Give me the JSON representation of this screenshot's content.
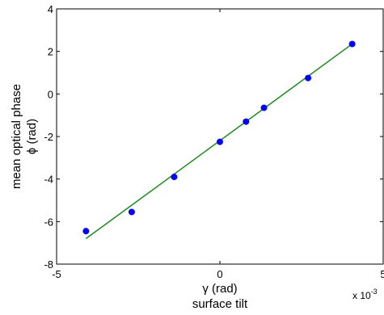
{
  "chart_data": {
    "type": "scatter",
    "title": "",
    "xlabel_line1": "γ (rad)",
    "xlabel_line2": "surface tilt",
    "ylabel_line1": "mean optical phase",
    "ylabel_line2": "ϕ (rad)",
    "x_exponent_label": "x 10",
    "x_exponent_power": "-3",
    "xlim": [
      -5,
      5
    ],
    "ylim": [
      -8,
      4
    ],
    "x_ticks": [
      -5,
      0,
      5
    ],
    "y_ticks": [
      -8,
      -6,
      -4,
      -2,
      0,
      2,
      4
    ],
    "grid": false,
    "legend": "none",
    "series": [
      {
        "kind": "points",
        "color": "#0000ff",
        "x": [
          -4.1,
          -2.7,
          -1.4,
          0.0,
          0.8,
          1.35,
          2.7,
          4.05
        ],
        "y": [
          -6.45,
          -5.55,
          -3.9,
          -2.25,
          -1.3,
          -0.65,
          0.75,
          2.35
        ]
      },
      {
        "kind": "fit-line",
        "color": "#1a8a1a",
        "x": [
          -4.1,
          4.05
        ],
        "y": [
          -6.8,
          2.35
        ]
      }
    ]
  }
}
